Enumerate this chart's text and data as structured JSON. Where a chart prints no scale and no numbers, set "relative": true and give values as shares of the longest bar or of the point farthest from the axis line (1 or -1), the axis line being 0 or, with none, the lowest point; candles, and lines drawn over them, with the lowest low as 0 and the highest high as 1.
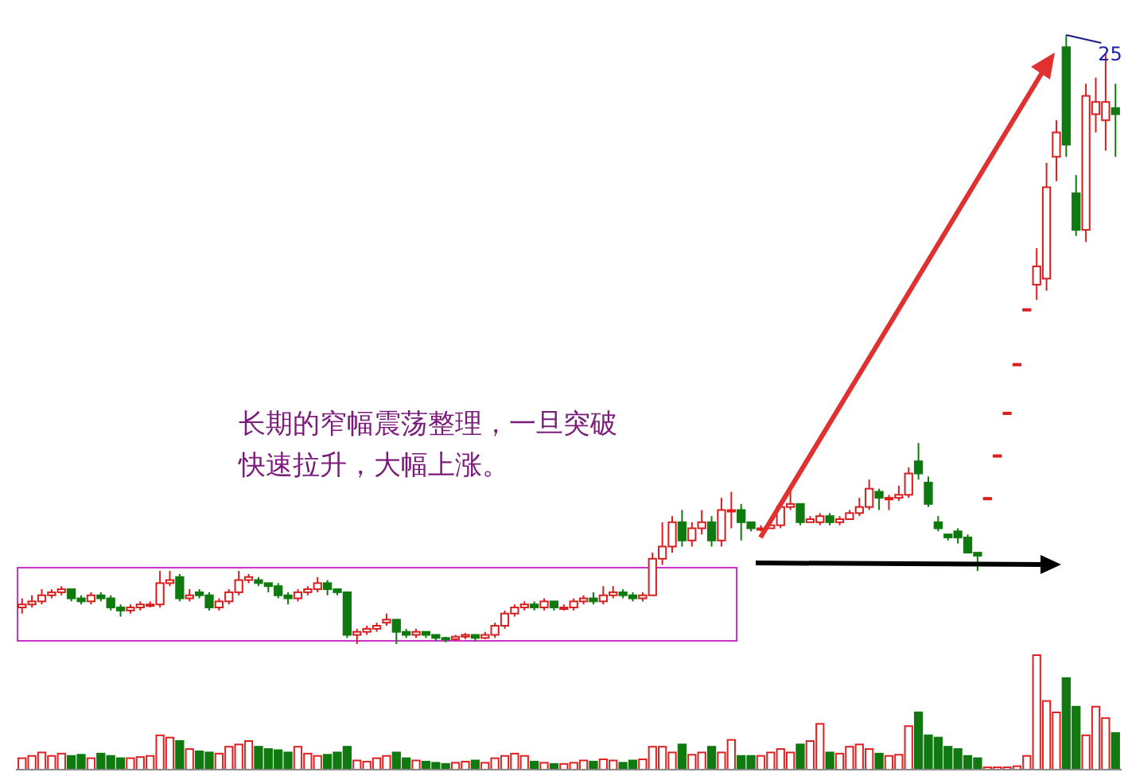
{
  "chart_data": [
    {
      "type": "candlestick",
      "relative": true,
      "categories": [
        null,
        null,
        null,
        null,
        null,
        null,
        null,
        null,
        null,
        null,
        null,
        null,
        null,
        null,
        null,
        null,
        null,
        null,
        null,
        null,
        null,
        null,
        null,
        null,
        null,
        null,
        null,
        null,
        null,
        null,
        null,
        null,
        null,
        null,
        null,
        null,
        null,
        null,
        null,
        null,
        null,
        null,
        null,
        null,
        null,
        null,
        null,
        null,
        null,
        null,
        null,
        null,
        null,
        null,
        null,
        null,
        null,
        null,
        null,
        null,
        null,
        null,
        null,
        null,
        null,
        null,
        null,
        null,
        null,
        null,
        null,
        null,
        null,
        null,
        null,
        null,
        null,
        null,
        null,
        null,
        null,
        null,
        null,
        null,
        null,
        null,
        null,
        null,
        null,
        null,
        null,
        null,
        null,
        null,
        null,
        null,
        null,
        null,
        null,
        null,
        null,
        null,
        null,
        null,
        null,
        null,
        null,
        null,
        null,
        null,
        null,
        null
      ],
      "ohlc": [
        [
          0.06,
          0.075,
          0.05,
          0.065
        ],
        [
          0.065,
          0.08,
          0.06,
          0.07
        ],
        [
          0.07,
          0.09,
          0.065,
          0.08
        ],
        [
          0.08,
          0.09,
          0.075,
          0.085
        ],
        [
          0.085,
          0.095,
          0.08,
          0.09
        ],
        [
          0.09,
          0.09,
          0.07,
          0.075
        ],
        [
          0.075,
          0.08,
          0.065,
          0.07
        ],
        [
          0.07,
          0.085,
          0.065,
          0.08
        ],
        [
          0.08,
          0.085,
          0.07,
          0.075
        ],
        [
          0.075,
          0.08,
          0.055,
          0.06
        ],
        [
          0.06,
          0.065,
          0.045,
          0.055
        ],
        [
          0.055,
          0.065,
          0.05,
          0.06
        ],
        [
          0.06,
          0.07,
          0.055,
          0.065
        ],
        [
          0.065,
          0.07,
          0.06,
          0.065
        ],
        [
          0.065,
          0.12,
          0.06,
          0.1
        ],
        [
          0.1,
          0.12,
          0.095,
          0.105
        ],
        [
          0.11,
          0.115,
          0.07,
          0.075
        ],
        [
          0.075,
          0.09,
          0.07,
          0.08
        ],
        [
          0.085,
          0.09,
          0.075,
          0.08
        ],
        [
          0.08,
          0.085,
          0.055,
          0.06
        ],
        [
          0.06,
          0.075,
          0.055,
          0.07
        ],
        [
          0.07,
          0.09,
          0.065,
          0.085
        ],
        [
          0.085,
          0.12,
          0.08,
          0.105
        ],
        [
          0.105,
          0.115,
          0.1,
          0.11
        ],
        [
          0.105,
          0.11,
          0.095,
          0.1
        ],
        [
          0.1,
          0.1,
          0.085,
          0.095
        ],
        [
          0.095,
          0.1,
          0.075,
          0.08
        ],
        [
          0.08,
          0.085,
          0.065,
          0.075
        ],
        [
          0.075,
          0.09,
          0.07,
          0.085
        ],
        [
          0.085,
          0.095,
          0.08,
          0.09
        ],
        [
          0.09,
          0.11,
          0.085,
          0.1
        ],
        [
          0.1,
          0.105,
          0.08,
          0.09
        ],
        [
          0.09,
          0.09,
          0.08,
          0.085
        ],
        [
          0.085,
          0.085,
          0.01,
          0.015
        ],
        [
          0.015,
          0.025,
          0,
          0.02
        ],
        [
          0.02,
          0.03,
          0.015,
          0.025
        ],
        [
          0.025,
          0.035,
          0.02,
          0.03
        ],
        [
          0.035,
          0.05,
          0.03,
          0.04
        ],
        [
          0.04,
          0.04,
          0,
          0.02
        ],
        [
          0.02,
          0.025,
          0.01,
          0.015
        ],
        [
          0.015,
          0.025,
          0.01,
          0.02
        ],
        [
          0.02,
          0.02,
          0.01,
          0.015
        ],
        [
          0.015,
          0.015,
          0.005,
          0.01
        ],
        [
          0.01,
          0.012,
          0.003,
          0.008
        ],
        [
          0.008,
          0.015,
          0.005,
          0.012
        ],
        [
          0.012,
          0.018,
          0.008,
          0.015
        ],
        [
          0.015,
          0.015,
          0.005,
          0.01
        ],
        [
          0.01,
          0.02,
          0.008,
          0.015
        ],
        [
          0.015,
          0.035,
          0.01,
          0.03
        ],
        [
          0.03,
          0.055,
          0.025,
          0.05
        ],
        [
          0.05,
          0.065,
          0.045,
          0.06
        ],
        [
          0.06,
          0.07,
          0.055,
          0.065
        ],
        [
          0.065,
          0.07,
          0.055,
          0.06
        ],
        [
          0.06,
          0.075,
          0.055,
          0.07
        ],
        [
          0.07,
          0.07,
          0.055,
          0.06
        ],
        [
          0.06,
          0.065,
          0.055,
          0.06
        ],
        [
          0.06,
          0.075,
          0.055,
          0.07
        ],
        [
          0.07,
          0.08,
          0.065,
          0.075
        ],
        [
          0.075,
          0.085,
          0.065,
          0.07
        ],
        [
          0.07,
          0.095,
          0.065,
          0.08
        ],
        [
          0.08,
          0.095,
          0.075,
          0.085
        ],
        [
          0.085,
          0.09,
          0.075,
          0.08
        ],
        [
          0.08,
          0.085,
          0.07,
          0.075
        ],
        [
          0.075,
          0.085,
          0.07,
          0.08
        ],
        [
          0.08,
          0.15,
          0.08,
          0.14
        ],
        [
          0.14,
          0.2,
          0.13,
          0.16
        ],
        [
          0.16,
          0.21,
          0.15,
          0.2
        ],
        [
          0.2,
          0.22,
          0.16,
          0.17
        ],
        [
          0.17,
          0.2,
          0.16,
          0.19
        ],
        [
          0.19,
          0.22,
          0.18,
          0.2
        ],
        [
          0.2,
          0.21,
          0.16,
          0.17
        ],
        [
          0.17,
          0.24,
          0.16,
          0.22
        ],
        [
          0.22,
          0.25,
          0.19,
          0.22
        ],
        [
          0.22,
          0.23,
          0.17,
          0.2
        ],
        [
          0.2,
          0.2,
          0.185,
          0.19
        ],
        [
          0.19,
          0.195,
          0.185,
          0.19
        ],
        [
          0.19,
          0.2,
          0.19,
          0.195
        ],
        [
          0.195,
          0.23,
          0.19,
          0.225
        ],
        [
          0.225,
          0.26,
          0.22,
          0.23
        ],
        [
          0.23,
          0.23,
          0.195,
          0.2
        ],
        [
          0.2,
          0.21,
          0.2,
          0.205
        ],
        [
          0.2,
          0.215,
          0.195,
          0.21
        ],
        [
          0.21,
          0.215,
          0.195,
          0.2
        ],
        [
          0.2,
          0.21,
          0.195,
          0.205
        ],
        [
          0.205,
          0.22,
          0.205,
          0.215
        ],
        [
          0.215,
          0.24,
          0.21,
          0.225
        ],
        [
          0.225,
          0.27,
          0.22,
          0.255
        ],
        [
          0.25,
          0.255,
          0.22,
          0.24
        ],
        [
          0.24,
          0.245,
          0.22,
          0.24
        ],
        [
          0.24,
          0.26,
          0.235,
          0.245
        ],
        [
          0.245,
          0.29,
          0.24,
          0.28
        ],
        [
          0.3,
          0.33,
          0.27,
          0.28
        ],
        [
          0.265,
          0.275,
          0.225,
          0.23
        ],
        [
          0.2,
          0.21,
          0.185,
          0.19
        ],
        [
          0.18,
          0.18,
          0.17,
          0.175
        ],
        [
          0.185,
          0.19,
          0.165,
          0.175
        ],
        [
          0.175,
          0.18,
          0.15,
          0.15
        ],
        [
          0.15,
          0.15,
          0.12,
          0.145
        ],
        [
          0.24,
          0.24,
          0.24,
          0.24
        ],
        [
          0.31,
          0.31,
          0.31,
          0.31
        ],
        [
          0.38,
          0.38,
          0.38,
          0.38
        ],
        [
          0.46,
          0.46,
          0.46,
          0.46
        ],
        [
          0.55,
          0.55,
          0.55,
          0.55
        ],
        [
          0.59,
          0.65,
          0.565,
          0.62
        ],
        [
          0.6,
          0.79,
          0.58,
          0.75
        ],
        [
          0.8,
          0.86,
          0.76,
          0.84
        ],
        [
          0.98,
          1,
          0.8,
          0.82
        ],
        [
          0.74,
          0.77,
          0.67,
          0.68
        ],
        [
          0.68,
          0.92,
          0.66,
          0.9
        ],
        [
          0.87,
          0.93,
          0.84,
          0.89
        ],
        [
          0.86,
          0.97,
          0.81,
          0.89
        ],
        [
          0.88,
          0.92,
          0.8,
          0.87
        ]
      ],
      "annotations": [
        "长期的窄幅震荡整理，一旦突破",
        "快速拉升，大幅上涨。",
        "25"
      ]
    },
    {
      "type": "bar",
      "relative": true,
      "categories": [
        null,
        null,
        null,
        null,
        null,
        null,
        null,
        null,
        null,
        null,
        null,
        null,
        null,
        null,
        null,
        null,
        null,
        null,
        null,
        null,
        null,
        null,
        null,
        null,
        null,
        null,
        null,
        null,
        null,
        null,
        null,
        null,
        null,
        null,
        null,
        null,
        null,
        null,
        null,
        null,
        null,
        null,
        null,
        null,
        null,
        null,
        null,
        null,
        null,
        null,
        null,
        null,
        null,
        null,
        null,
        null,
        null,
        null,
        null,
        null,
        null,
        null,
        null,
        null,
        null,
        null,
        null,
        null,
        null,
        null,
        null,
        null,
        null,
        null,
        null,
        null,
        null,
        null,
        null,
        null,
        null,
        null,
        null,
        null,
        null,
        null,
        null,
        null,
        null,
        null,
        null,
        null,
        null,
        null,
        null,
        null,
        null,
        null,
        null,
        null,
        null,
        null,
        null,
        null,
        null,
        null,
        null,
        null,
        null,
        null,
        null,
        null
      ],
      "values": [
        0.1,
        0.12,
        0.15,
        0.12,
        0.14,
        0.12,
        0.13,
        0.1,
        0.14,
        0.12,
        0.1,
        0.1,
        0.11,
        0.12,
        0.3,
        0.28,
        0.25,
        0.18,
        0.16,
        0.15,
        0.14,
        0.2,
        0.22,
        0.25,
        0.2,
        0.18,
        0.17,
        0.15,
        0.2,
        0.14,
        0.12,
        0.13,
        0.15,
        0.2,
        0.08,
        0.07,
        0.1,
        0.12,
        0.15,
        0.1,
        0.08,
        0.07,
        0.06,
        0.05,
        0.06,
        0.07,
        0.08,
        0.06,
        0.1,
        0.12,
        0.14,
        0.12,
        0.07,
        0.06,
        0.05,
        0.05,
        0.06,
        0.08,
        0.07,
        0.09,
        0.08,
        0.06,
        0.08,
        0.09,
        0.2,
        0.2,
        0.15,
        0.22,
        0.13,
        0.15,
        0.2,
        0.15,
        0.26,
        0.12,
        0.12,
        0.12,
        0.15,
        0.18,
        0.15,
        0.22,
        0.25,
        0.4,
        0.15,
        0.14,
        0.2,
        0.22,
        0.18,
        0.14,
        0.12,
        0.13,
        0.38,
        0.5,
        0.3,
        0.28,
        0.2,
        0.18,
        0.12,
        0.1,
        0.02,
        0.02,
        0.02,
        0.03,
        0.12,
        1,
        0.6,
        0.5,
        0.8,
        0.55,
        0.3,
        0.55,
        0.45,
        0.32
      ],
      "colors": [
        "#e02020",
        "#e02020",
        "#e02020",
        "#e02020",
        "#e02020",
        "#107a10",
        "#107a10",
        "#e02020",
        "#107a10",
        "#107a10",
        "#107a10",
        "#e02020",
        "#e02020",
        "#e02020",
        "#e02020",
        "#e02020",
        "#107a10",
        "#e02020",
        "#107a10",
        "#107a10",
        "#e02020",
        "#e02020",
        "#e02020",
        "#e02020",
        "#107a10",
        "#107a10",
        "#107a10",
        "#107a10",
        "#e02020",
        "#e02020",
        "#e02020",
        "#107a10",
        "#107a10",
        "#107a10",
        "#e02020",
        "#e02020",
        "#e02020",
        "#e02020",
        "#107a10",
        "#107a10",
        "#e02020",
        "#107a10",
        "#107a10",
        "#107a10",
        "#e02020",
        "#e02020",
        "#107a10",
        "#e02020",
        "#e02020",
        "#e02020",
        "#e02020",
        "#e02020",
        "#107a10",
        "#e02020",
        "#107a10",
        "#e02020",
        "#e02020",
        "#e02020",
        "#107a10",
        "#e02020",
        "#e02020",
        "#107a10",
        "#107a10",
        "#e02020",
        "#e02020",
        "#e02020",
        "#e02020",
        "#107a10",
        "#e02020",
        "#e02020",
        "#107a10",
        "#e02020",
        "#e02020",
        "#107a10",
        "#107a10",
        "#e02020",
        "#e02020",
        "#e02020",
        "#e02020",
        "#107a10",
        "#e02020",
        "#e02020",
        "#107a10",
        "#e02020",
        "#e02020",
        "#e02020",
        "#e02020",
        "#107a10",
        "#e02020",
        "#e02020",
        "#e02020",
        "#107a10",
        "#107a10",
        "#107a10",
        "#107a10",
        "#107a10",
        "#107a10",
        "#107a10",
        "#e02020",
        "#e02020",
        "#e02020",
        "#e02020",
        "#e02020",
        "#e02020",
        "#e02020",
        "#e02020",
        "#107a10",
        "#107a10",
        "#e02020",
        "#e02020",
        "#e02020",
        "#107a10"
      ]
    }
  ]
}
